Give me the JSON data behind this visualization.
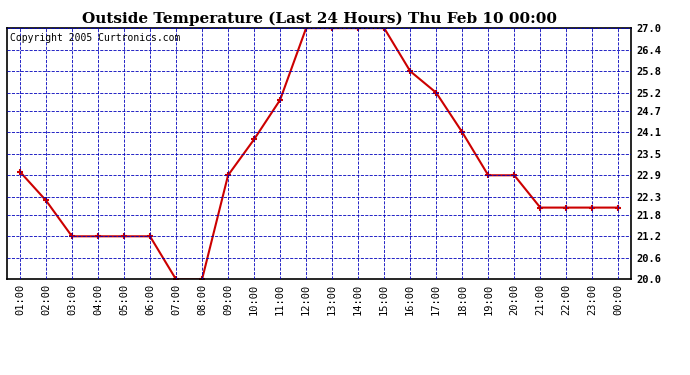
{
  "title": "Outside Temperature (Last 24 Hours) Thu Feb 10 00:00",
  "copyright": "Copyright 2005 Curtronics.com",
  "x_labels": [
    "01:00",
    "02:00",
    "03:00",
    "04:00",
    "05:00",
    "06:00",
    "07:00",
    "08:00",
    "09:00",
    "10:00",
    "11:00",
    "12:00",
    "13:00",
    "14:00",
    "15:00",
    "16:00",
    "17:00",
    "18:00",
    "19:00",
    "20:00",
    "21:00",
    "22:00",
    "23:00",
    "00:00"
  ],
  "x_values": [
    1,
    2,
    3,
    4,
    5,
    6,
    7,
    8,
    9,
    10,
    11,
    12,
    13,
    14,
    15,
    16,
    17,
    18,
    19,
    20,
    21,
    22,
    23,
    24
  ],
  "y_values": [
    23.0,
    22.2,
    21.2,
    21.2,
    21.2,
    21.2,
    20.0,
    20.0,
    22.9,
    23.9,
    25.0,
    27.0,
    27.0,
    27.0,
    27.0,
    25.8,
    25.2,
    24.1,
    22.9,
    22.9,
    22.0,
    22.0,
    22.0,
    22.0
  ],
  "ylim": [
    20.0,
    27.0
  ],
  "yticks": [
    20.0,
    20.6,
    21.2,
    21.8,
    22.3,
    22.9,
    23.5,
    24.1,
    24.7,
    25.2,
    25.8,
    26.4,
    27.0
  ],
  "line_color": "#cc0000",
  "marker_color": "#cc0000",
  "grid_color": "#0000bb",
  "bg_color": "#ffffff",
  "plot_bg_color": "#ffffff",
  "title_fontsize": 11,
  "copyright_fontsize": 7,
  "axis_label_fontsize": 7.5
}
